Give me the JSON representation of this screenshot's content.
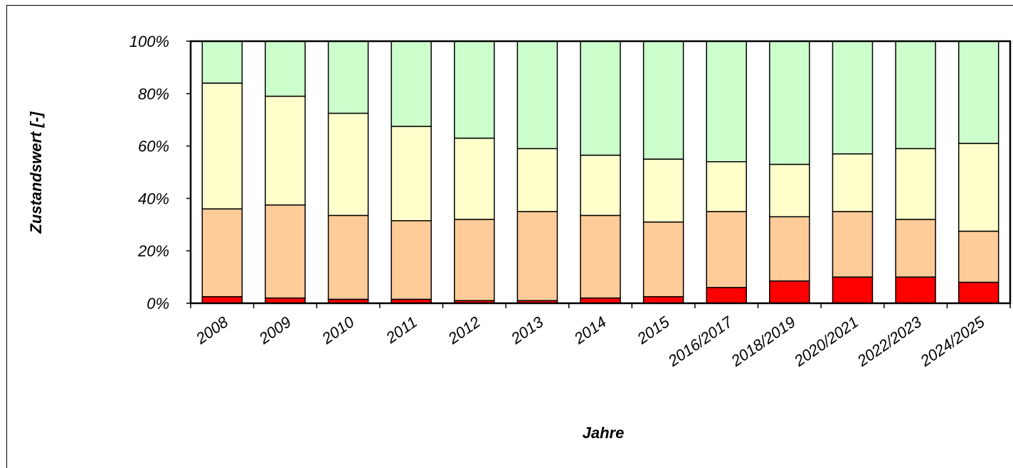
{
  "chart_data": {
    "type": "bar",
    "stacked": true,
    "x_label": "Jahre",
    "y_label": "Zustandswert [-]",
    "categories": [
      "2008",
      "2009",
      "2010",
      "2011",
      "2012",
      "2013",
      "2014",
      "2015",
      "2016/2017",
      "2018/2019",
      "2020/2021",
      "2022/2023",
      "2024/2025"
    ],
    "series": [
      {
        "color": "#ff0000",
        "values": [
          2.5,
          2,
          1.5,
          1.5,
          1,
          1,
          2,
          2.5,
          6,
          8.5,
          10,
          10,
          8
        ]
      },
      {
        "color": "#ffcc99",
        "values": [
          33.5,
          35.5,
          32,
          30,
          31,
          34,
          31.5,
          28.5,
          29,
          24.5,
          25,
          22,
          19.5
        ]
      },
      {
        "color": "#ffffcc",
        "values": [
          48,
          41.5,
          39,
          36,
          31,
          24,
          23,
          24,
          19,
          20,
          22,
          27,
          33.5
        ]
      },
      {
        "color": "#ccffcc",
        "values": [
          16,
          21,
          27.5,
          32.5,
          37,
          41,
          43.5,
          45,
          46,
          47,
          43,
          41,
          39
        ]
      }
    ],
    "ylim": [
      0,
      100
    ],
    "yticks": [
      {
        "value": 0,
        "label": "0%"
      },
      {
        "value": 20,
        "label": "20%"
      },
      {
        "value": 40,
        "label": "40%"
      },
      {
        "value": 60,
        "label": "60%"
      },
      {
        "value": 80,
        "label": "80%"
      },
      {
        "value": 100,
        "label": "100%"
      }
    ],
    "grid": false
  }
}
